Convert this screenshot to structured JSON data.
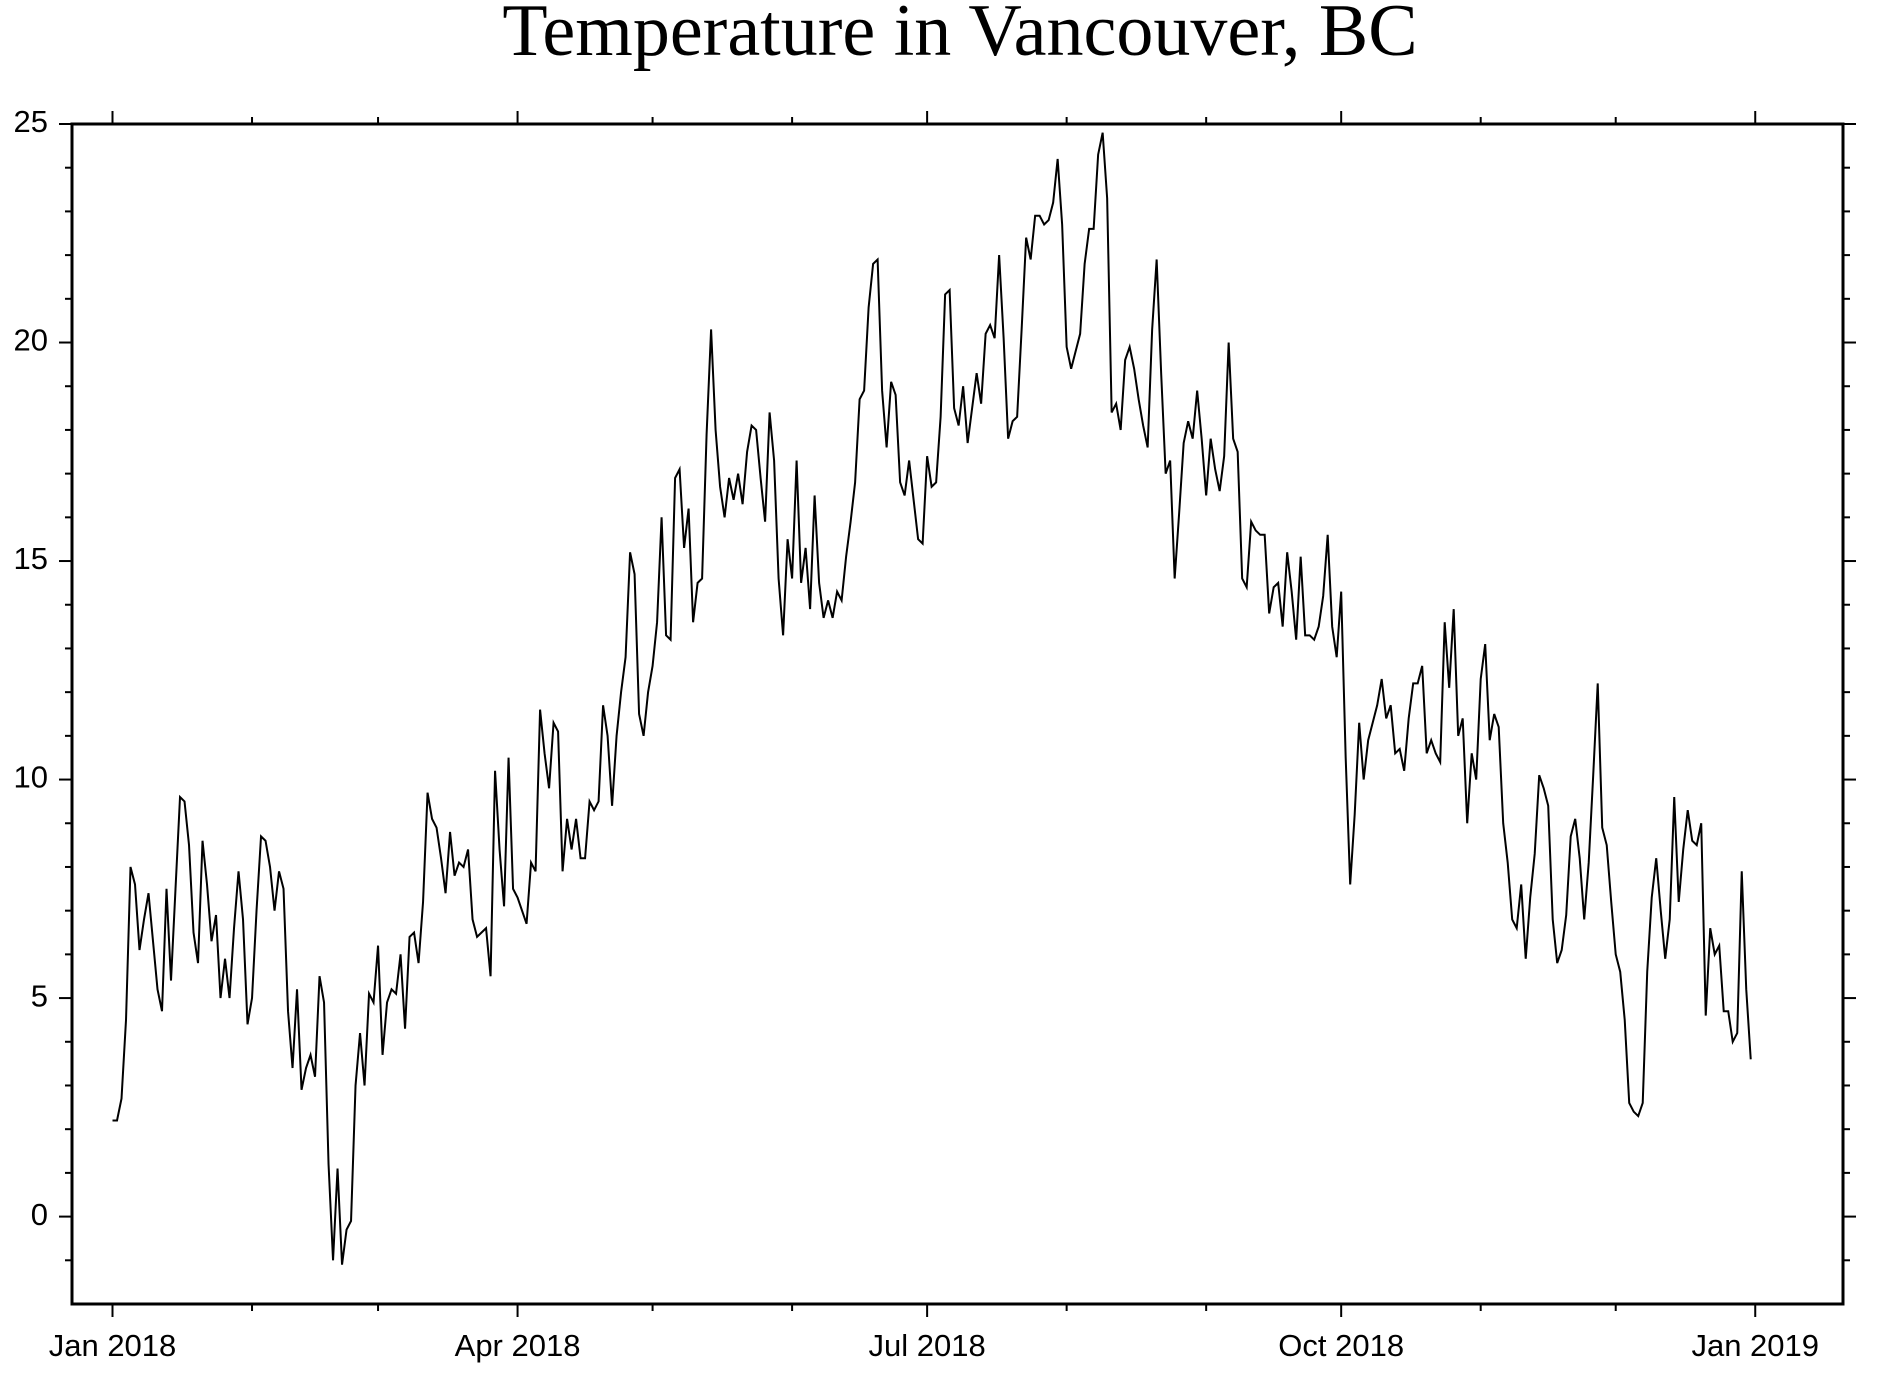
{
  "chart_data": {
    "type": "line",
    "title": "Temperature in Vancouver, BC",
    "color": "#000000",
    "xlim": [
      -9,
      384.5
    ],
    "xticks": [
      {
        "value": 0,
        "label": "Jan 2018"
      },
      {
        "value": 90,
        "label": "Apr 2018"
      },
      {
        "value": 181,
        "label": "Jul 2018"
      },
      {
        "value": 273,
        "label": "Oct 2018"
      },
      {
        "value": 365,
        "label": "Jan 2019"
      }
    ],
    "xminor_ticks": [
      31,
      59,
      120,
      151,
      212,
      243,
      304,
      334
    ],
    "ylim": [
      -2,
      25
    ],
    "yticks": [
      0,
      5,
      10,
      15,
      20,
      25
    ],
    "yminor_ticks": [
      -1,
      1,
      2,
      3,
      4,
      6,
      7,
      8,
      9,
      11,
      12,
      13,
      14,
      16,
      17,
      18,
      19,
      21,
      22,
      23,
      24
    ],
    "grid": false,
    "x": [
      0,
      1,
      2,
      3,
      4,
      5,
      6,
      7,
      8,
      9,
      10,
      11,
      12,
      13,
      14,
      15,
      16,
      17,
      18,
      19,
      20,
      21,
      22,
      23,
      24,
      25,
      26,
      27,
      28,
      29,
      30,
      31,
      32,
      33,
      34,
      35,
      36,
      37,
      38,
      39,
      40,
      41,
      42,
      43,
      44,
      45,
      46,
      47,
      48,
      49,
      50,
      51,
      52,
      53,
      54,
      55,
      56,
      57,
      58,
      59,
      60,
      61,
      62,
      63,
      64,
      65,
      66,
      67,
      68,
      69,
      70,
      71,
      72,
      73,
      74,
      75,
      76,
      77,
      78,
      79,
      80,
      81,
      82,
      83,
      84,
      85,
      86,
      87,
      88,
      89,
      90,
      91,
      92,
      93,
      94,
      95,
      96,
      97,
      98,
      99,
      100,
      101,
      102,
      103,
      104,
      105,
      106,
      107,
      108,
      109,
      110,
      111,
      112,
      113,
      114,
      115,
      116,
      117,
      118,
      119,
      120,
      121,
      122,
      123,
      124,
      125,
      126,
      127,
      128,
      129,
      130,
      131,
      132,
      133,
      134,
      135,
      136,
      137,
      138,
      139,
      140,
      141,
      142,
      143,
      144,
      145,
      146,
      147,
      148,
      149,
      150,
      151,
      152,
      153,
      154,
      155,
      156,
      157,
      158,
      159,
      160,
      161,
      162,
      163,
      164,
      165,
      166,
      167,
      168,
      169,
      170,
      171,
      172,
      173,
      174,
      175,
      176,
      177,
      178,
      179,
      180,
      181,
      182,
      183,
      184,
      185,
      186,
      187,
      188,
      189,
      190,
      191,
      192,
      193,
      194,
      195,
      196,
      197,
      198,
      199,
      200,
      201,
      202,
      203,
      204,
      205,
      206,
      207,
      208,
      209,
      210,
      211,
      212,
      213,
      214,
      215,
      216,
      217,
      218,
      219,
      220,
      221,
      222,
      223,
      224,
      225,
      226,
      227,
      228,
      229,
      230,
      231,
      232,
      233,
      234,
      235,
      236,
      237,
      238,
      239,
      240,
      241,
      242,
      243,
      244,
      245,
      246,
      247,
      248,
      249,
      250,
      251,
      252,
      253,
      254,
      255,
      256,
      257,
      258,
      259,
      260,
      261,
      262,
      263,
      264,
      265,
      266,
      267,
      268,
      269,
      270,
      271,
      272,
      273,
      274,
      275,
      276,
      277,
      278,
      279,
      280,
      281,
      282,
      283,
      284,
      285,
      286,
      287,
      288,
      289,
      290,
      291,
      292,
      293,
      294,
      295,
      296,
      297,
      298,
      299,
      300,
      301,
      302,
      303,
      304,
      305,
      306,
      307,
      308,
      309,
      310,
      311,
      312,
      313,
      314,
      315,
      316,
      317,
      318,
      319,
      320,
      321,
      322,
      323,
      324,
      325,
      326,
      327,
      328,
      329,
      330,
      331,
      332,
      333,
      334,
      335,
      336,
      337,
      338,
      339,
      340,
      341,
      342,
      343,
      344,
      345,
      346,
      347,
      348,
      349,
      350,
      351,
      352,
      353,
      354,
      355,
      356,
      357,
      358,
      359,
      360,
      361,
      362,
      363,
      364
    ],
    "values": [
      2.2,
      2.2,
      2.7,
      4.5,
      8.0,
      7.6,
      6.1,
      6.8,
      7.4,
      6.3,
      5.2,
      4.7,
      7.5,
      5.4,
      7.5,
      9.6,
      9.5,
      8.5,
      6.5,
      5.8,
      8.6,
      7.6,
      6.3,
      6.9,
      5.0,
      5.9,
      5.0,
      6.6,
      7.9,
      6.8,
      4.4,
      5.0,
      7.0,
      8.7,
      8.6,
      8.0,
      7.0,
      7.9,
      7.5,
      4.7,
      3.4,
      5.2,
      2.9,
      3.4,
      3.7,
      3.2,
      5.5,
      4.9,
      1.2,
      -1.0,
      1.1,
      -1.1,
      -0.3,
      -0.1,
      3.0,
      4.2,
      3.0,
      5.1,
      4.9,
      6.2,
      3.7,
      4.9,
      5.2,
      5.1,
      6.0,
      4.3,
      6.4,
      6.5,
      5.8,
      7.2,
      9.7,
      9.1,
      8.9,
      8.2,
      7.4,
      8.8,
      7.8,
      8.1,
      8.0,
      8.4,
      6.8,
      6.4,
      6.5,
      6.6,
      5.5,
      10.2,
      8.4,
      7.1,
      10.5,
      7.5,
      7.3,
      7.0,
      6.7,
      8.1,
      7.9,
      11.6,
      10.6,
      9.8,
      11.3,
      11.1,
      7.9,
      9.1,
      8.4,
      9.1,
      8.2,
      8.2,
      9.5,
      9.3,
      9.5,
      11.7,
      11.0,
      9.4,
      11.0,
      12.0,
      12.8,
      15.2,
      14.7,
      11.5,
      11.0,
      12.0,
      12.6,
      13.6,
      16.0,
      13.3,
      13.2,
      16.9,
      17.1,
      15.3,
      16.2,
      13.6,
      14.5,
      14.6,
      17.9,
      20.3,
      18.0,
      16.7,
      16.0,
      16.9,
      16.4,
      17.0,
      16.3,
      17.5,
      18.1,
      18.0,
      16.9,
      15.9,
      18.4,
      17.3,
      14.6,
      13.3,
      15.5,
      14.6,
      17.3,
      14.5,
      15.3,
      13.9,
      16.5,
      14.5,
      13.7,
      14.1,
      13.7,
      14.3,
      14.1,
      15.1,
      15.9,
      16.8,
      18.7,
      18.9,
      20.8,
      21.8,
      21.9,
      18.9,
      17.6,
      19.1,
      18.8,
      16.8,
      16.5,
      17.3,
      16.4,
      15.5,
      15.4,
      17.4,
      16.7,
      16.8,
      18.3,
      21.1,
      21.2,
      18.5,
      18.1,
      19.0,
      17.7,
      18.5,
      19.3,
      18.6,
      20.2,
      20.4,
      20.1,
      22.0,
      20.1,
      17.8,
      18.2,
      18.3,
      20.3,
      22.4,
      21.9,
      22.9,
      22.9,
      22.7,
      22.8,
      23.2,
      24.2,
      22.7,
      19.9,
      19.4,
      19.8,
      20.2,
      21.8,
      22.6,
      22.6,
      24.3,
      24.8,
      23.3,
      18.4,
      18.6,
      18.0,
      19.6,
      19.9,
      19.4,
      18.7,
      18.1,
      17.6,
      20.3,
      21.9,
      19.3,
      17.0,
      17.3,
      14.6,
      16.1,
      17.7,
      18.2,
      17.8,
      18.9,
      17.8,
      16.5,
      17.8,
      17.1,
      16.6,
      17.4,
      20.0,
      17.8,
      17.5,
      14.6,
      14.4,
      15.9,
      15.7,
      15.6,
      15.6,
      13.8,
      14.4,
      14.5,
      13.5,
      15.2,
      14.3,
      13.2,
      15.1,
      13.3,
      13.3,
      13.2,
      13.5,
      14.2,
      15.6,
      13.5,
      12.8,
      14.3,
      10.5,
      7.6,
      9.2,
      11.3,
      10.0,
      10.9,
      11.3,
      11.7,
      12.3,
      11.4,
      11.7,
      10.6,
      10.7,
      10.2,
      11.4,
      12.2,
      12.2,
      12.6,
      10.6,
      10.9,
      10.6,
      10.4,
      13.6,
      12.1,
      13.9,
      11.0,
      11.4,
      9.0,
      10.6,
      10.0,
      12.3,
      13.1,
      10.9,
      11.5,
      11.2,
      9.0,
      8.1,
      6.8,
      6.6,
      7.6,
      5.9,
      7.3,
      8.3,
      10.1,
      9.8,
      9.4,
      6.8,
      5.8,
      6.1,
      6.9,
      8.7,
      9.1,
      8.2,
      6.8,
      8.1,
      10.1,
      12.2,
      8.9,
      8.5,
      7.2,
      6.0,
      5.6,
      4.5,
      2.6,
      2.4,
      2.3,
      2.6,
      5.6,
      7.3,
      8.2,
      7.0,
      5.9,
      6.8,
      9.6,
      7.2,
      8.4,
      9.3,
      8.6,
      8.5,
      9.0,
      4.6,
      6.6,
      6.0,
      6.2,
      4.7,
      4.7,
      4.0,
      4.2,
      7.9,
      5.2,
      3.6
    ]
  }
}
